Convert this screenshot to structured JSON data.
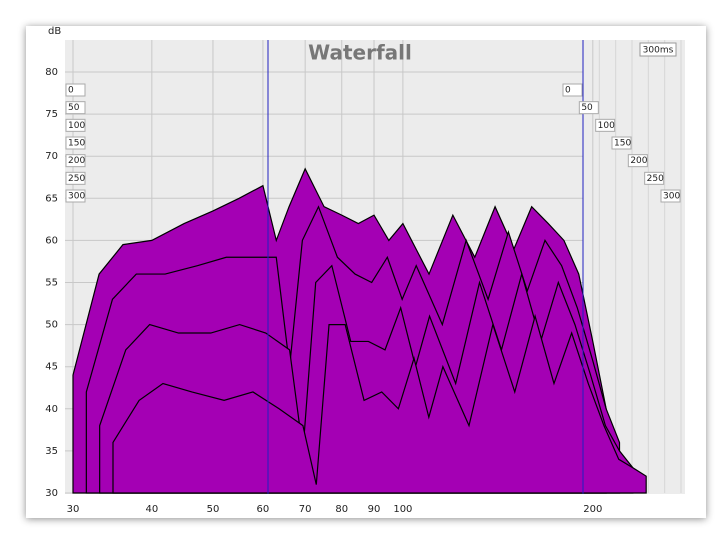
{
  "chart_data": {
    "type": "waterfall",
    "title": "Waterfall",
    "ylabel": "dB",
    "ylim": [
      30,
      82
    ],
    "yticks": [
      30,
      35,
      40,
      45,
      50,
      55,
      60,
      65,
      70,
      75,
      80
    ],
    "xlim": [
      29.3,
      280
    ],
    "log_x": true,
    "xticks": [
      30,
      40,
      50,
      60,
      70,
      80,
      90,
      100,
      200
    ],
    "zticks": [
      0,
      50,
      100,
      150,
      200,
      250,
      300
    ],
    "zlabel": "300ms",
    "grid": true,
    "x": [
      30,
      33,
      36,
      40,
      45,
      50,
      55,
      60,
      63,
      66,
      70,
      75,
      80,
      85,
      90,
      95,
      100,
      110,
      120,
      130,
      140,
      150,
      160,
      170,
      180,
      190,
      200,
      210
    ],
    "series": [
      {
        "name": "0",
        "color": "#a400b4",
        "values": [
          44,
          56,
          59.5,
          60,
          62,
          63.5,
          65,
          66.5,
          60,
          64,
          68.5,
          64,
          63,
          62,
          63,
          60,
          62,
          56,
          63,
          58,
          64,
          59,
          64,
          62,
          60,
          56,
          48,
          40
        ]
      },
      {
        "name": "100",
        "color": "#a400b4",
        "values": [
          42,
          53,
          56,
          56,
          57,
          58,
          58,
          58,
          45,
          60,
          64,
          58,
          56,
          55,
          58,
          53,
          57,
          50,
          60,
          53,
          61,
          54,
          60,
          57,
          52,
          46,
          40,
          36
        ]
      },
      {
        "name": "200",
        "color": "#a400b4",
        "values": [
          38,
          47,
          50,
          49,
          49,
          50,
          49,
          47,
          35,
          55,
          57,
          48,
          48,
          47,
          52,
          45,
          51,
          43,
          55,
          47,
          56,
          48,
          55,
          50,
          44,
          38,
          35,
          33
        ]
      },
      {
        "name": "300",
        "color": "#a400b4",
        "values": [
          36,
          41,
          43,
          42,
          41,
          42,
          40,
          38,
          31,
          50,
          50,
          41,
          42,
          40,
          46,
          39,
          45,
          38,
          50,
          42,
          51,
          43,
          49,
          43,
          38,
          34,
          33,
          32
        ]
      }
    ]
  }
}
